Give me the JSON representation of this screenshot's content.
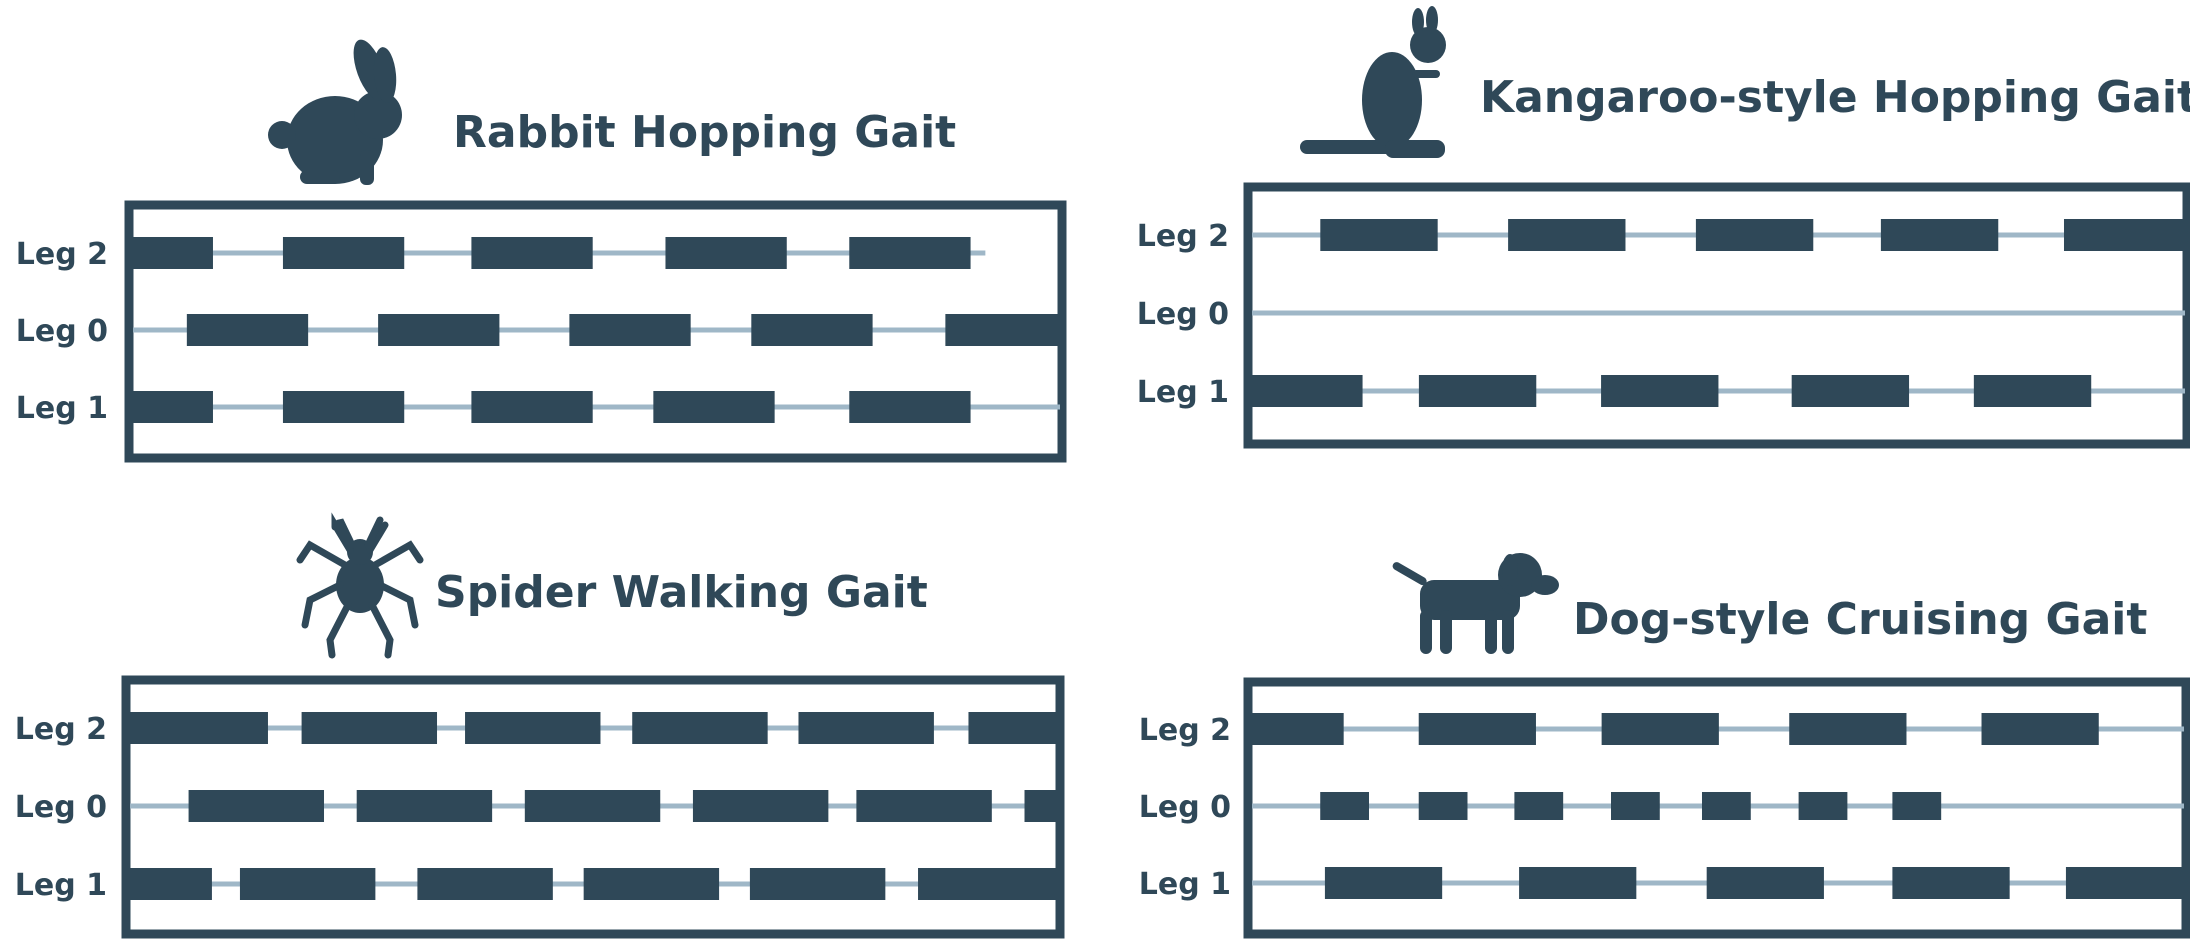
{
  "colors": {
    "ink": "#2f4858",
    "track": "#9fb7c7",
    "background": "#ffffff"
  },
  "timelines": "time runs left to right; each leg row lists [start, end] stance intervals as fractions of the panel width (1.0 = right frame edge)",
  "panels": [
    {
      "title": "Rabbit Hopping Gait",
      "icon": "rabbit-icon",
      "legs": [
        {
          "label": "Leg 2",
          "track_end": 0.92,
          "segments": [
            [
              0.0,
              0.09
            ],
            [
              0.165,
              0.295
            ],
            [
              0.367,
              0.497
            ],
            [
              0.575,
              0.705
            ],
            [
              0.772,
              0.902
            ]
          ]
        },
        {
          "label": "Leg 0",
          "track_end": 1.0,
          "segments": [
            [
              0.062,
              0.192
            ],
            [
              0.267,
              0.397
            ],
            [
              0.472,
              0.602
            ],
            [
              0.667,
              0.797
            ],
            [
              0.875,
              1.0
            ]
          ]
        },
        {
          "label": "Leg 1",
          "track_end": 1.0,
          "segments": [
            [
              0.0,
              0.09
            ],
            [
              0.165,
              0.295
            ],
            [
              0.367,
              0.497
            ],
            [
              0.562,
              0.692
            ],
            [
              0.772,
              0.902
            ]
          ]
        }
      ]
    },
    {
      "title": "Kangaroo-style Hopping Gait",
      "icon": "kangaroo-icon",
      "legs": [
        {
          "label": "Leg 2",
          "track_end": 1.0,
          "segments": [
            [
              0.077,
              0.202
            ],
            [
              0.277,
              0.402
            ],
            [
              0.477,
              0.602
            ],
            [
              0.674,
              0.799
            ],
            [
              0.869,
              1.0
            ]
          ]
        },
        {
          "label": "Leg 0",
          "track_end": 1.0,
          "segments": []
        },
        {
          "label": "Leg 1",
          "track_end": 1.0,
          "segments": [
            [
              0.0,
              0.122
            ],
            [
              0.182,
              0.307
            ],
            [
              0.376,
              0.501
            ],
            [
              0.579,
              0.704
            ],
            [
              0.773,
              0.898
            ]
          ]
        }
      ]
    },
    {
      "title": "Spider Walking Gait",
      "icon": "spider-icon",
      "legs": [
        {
          "label": "Leg 2",
          "track_end": 1.0,
          "segments": [
            [
              0.0,
              0.152
            ],
            [
              0.188,
              0.333
            ],
            [
              0.363,
              0.508
            ],
            [
              0.542,
              0.687
            ],
            [
              0.72,
              0.865
            ],
            [
              0.902,
              1.0
            ]
          ]
        },
        {
          "label": "Leg 0",
          "track_end": 1.0,
          "segments": [
            [
              0.067,
              0.212
            ],
            [
              0.247,
              0.392
            ],
            [
              0.427,
              0.572
            ],
            [
              0.607,
              0.752
            ],
            [
              0.782,
              0.927
            ],
            [
              0.962,
              1.0
            ]
          ]
        },
        {
          "label": "Leg 1",
          "track_end": 1.0,
          "segments": [
            [
              0.0,
              0.092
            ],
            [
              0.122,
              0.267
            ],
            [
              0.312,
              0.457
            ],
            [
              0.49,
              0.635
            ],
            [
              0.668,
              0.813
            ],
            [
              0.848,
              1.0
            ]
          ]
        }
      ]
    },
    {
      "title": "Dog-style Cruising Gait",
      "icon": "dog-icon",
      "legs": [
        {
          "label": "Leg 2",
          "track_end": 1.0,
          "segments": [
            [
              0.0,
              0.102
            ],
            [
              0.182,
              0.307
            ],
            [
              0.377,
              0.502
            ],
            [
              0.577,
              0.702
            ],
            [
              0.782,
              0.907
            ]
          ]
        },
        {
          "label": "Leg 0",
          "track_end": 1.0,
          "segments": [
            [
              0.077,
              0.129
            ],
            [
              0.182,
              0.234
            ],
            [
              0.284,
              0.336
            ],
            [
              0.387,
              0.439
            ],
            [
              0.484,
              0.536
            ],
            [
              0.587,
              0.639
            ],
            [
              0.687,
              0.739
            ]
          ]
        },
        {
          "label": "Leg 1",
          "track_end": 1.0,
          "segments": [
            [
              0.082,
              0.207
            ],
            [
              0.289,
              0.414
            ],
            [
              0.489,
              0.614
            ],
            [
              0.687,
              0.812
            ],
            [
              0.872,
              1.0
            ]
          ]
        }
      ]
    }
  ]
}
